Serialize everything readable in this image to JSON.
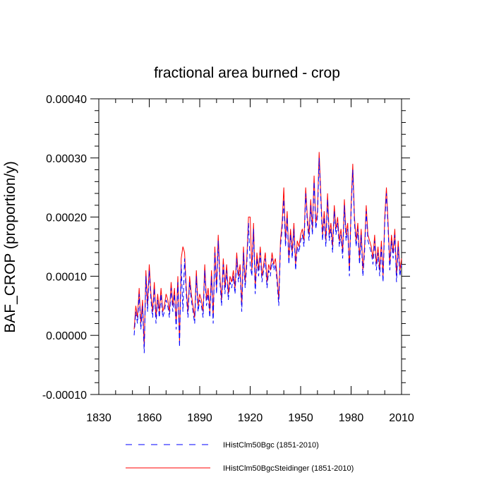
{
  "chart_data": {
    "type": "line",
    "title": "fractional area burned - crop",
    "xlabel": "",
    "ylabel": "BAF_CROP  (proportion/y)",
    "xlim": [
      1830,
      2010
    ],
    "ylim": [
      -0.0001,
      0.0004
    ],
    "x_ticks": [
      "1830",
      "1860",
      "1890",
      "1920",
      "1950",
      "1980",
      "2010"
    ],
    "y_ticks": [
      "-0.00010",
      "0.00000",
      "0.00010",
      "0.00020",
      "0.00030",
      "0.00040"
    ],
    "grid": false,
    "legend_position": "bottom",
    "x": [
      1851,
      1852,
      1853,
      1854,
      1855,
      1856,
      1857,
      1858,
      1859,
      1860,
      1861,
      1862,
      1863,
      1864,
      1865,
      1866,
      1867,
      1868,
      1869,
      1870,
      1871,
      1872,
      1873,
      1874,
      1875,
      1876,
      1877,
      1878,
      1879,
      1880,
      1881,
      1882,
      1883,
      1884,
      1885,
      1886,
      1887,
      1888,
      1889,
      1890,
      1891,
      1892,
      1893,
      1894,
      1895,
      1896,
      1897,
      1898,
      1899,
      1900,
      1901,
      1902,
      1903,
      1904,
      1905,
      1906,
      1907,
      1908,
      1909,
      1910,
      1911,
      1912,
      1913,
      1914,
      1915,
      1916,
      1917,
      1918,
      1919,
      1920,
      1921,
      1922,
      1923,
      1924,
      1925,
      1926,
      1927,
      1928,
      1929,
      1930,
      1931,
      1932,
      1933,
      1934,
      1935,
      1936,
      1937,
      1938,
      1939,
      1940,
      1941,
      1942,
      1943,
      1944,
      1945,
      1946,
      1947,
      1948,
      1949,
      1950,
      1951,
      1952,
      1953,
      1954,
      1955,
      1956,
      1957,
      1958,
      1959,
      1960,
      1961,
      1962,
      1963,
      1964,
      1965,
      1966,
      1967,
      1968,
      1969,
      1970,
      1971,
      1972,
      1973,
      1974,
      1975,
      1976,
      1977,
      1978,
      1979,
      1980,
      1981,
      1982,
      1983,
      1984,
      1985,
      1986,
      1987,
      1988,
      1989,
      1990,
      1991,
      1992,
      1993,
      1994,
      1995,
      1996,
      1997,
      1998,
      1999,
      2000,
      2001,
      2002,
      2003,
      2004,
      2005,
      2006,
      2007,
      2008,
      2009,
      2010
    ],
    "series": [
      {
        "name": "IHistClm50Bgc (1851-2010)",
        "color": "#0000ff",
        "dash": "dashed",
        "values": [
          0.0,
          4e-05,
          2e-05,
          7e-05,
          1e-05,
          5e-05,
          -3e-05,
          0.0001,
          4e-05,
          0.00011,
          6e-05,
          3e-05,
          8e-05,
          2e-05,
          6e-05,
          3e-05,
          7e-05,
          3e-05,
          4e-05,
          6e-05,
          5e-05,
          3e-05,
          8e-05,
          4e-05,
          7e-05,
          1e-05,
          9e-05,
          -2e-05,
          0.00012,
          4e-05,
          0.00013,
          7e-05,
          3e-05,
          9e-05,
          6e-05,
          4e-05,
          2e-05,
          0.0001,
          4e-05,
          6e-05,
          5e-05,
          3e-05,
          0.00011,
          5e-05,
          7e-05,
          3e-05,
          0.0001,
          2e-05,
          0.00014,
          7e-05,
          0.00016,
          9e-05,
          5e-05,
          0.00012,
          7e-05,
          0.00011,
          6e-05,
          9e-05,
          8e-05,
          0.0001,
          7e-05,
          0.00013,
          9e-05,
          0.00011,
          4e-05,
          0.00014,
          8e-05,
          0.00012,
          0.00019,
          0.00012,
          0.0001,
          0.00018,
          7e-05,
          0.00013,
          0.0001,
          0.00014,
          9e-05,
          0.00011,
          0.00013,
          8e-05,
          0.00011,
          0.0001,
          0.00013,
          0.00011,
          0.00012,
          9e-05,
          5e-05,
          0.00015,
          0.00018,
          0.00023,
          0.00015,
          0.0002,
          0.00012,
          0.00017,
          0.00013,
          0.00018,
          0.00011,
          0.00015,
          0.00014,
          0.00016,
          0.00017,
          0.00015,
          0.00024,
          0.00019,
          0.00016,
          0.00022,
          0.00017,
          0.00026,
          0.00018,
          0.0002,
          0.0003,
          0.00023,
          0.00016,
          0.0002,
          0.00015,
          0.00023,
          0.00016,
          0.00018,
          0.00014,
          0.00021,
          0.00017,
          0.00019,
          0.00015,
          0.00017,
          0.00013,
          0.00022,
          0.00016,
          0.00018,
          0.0001,
          0.00021,
          0.00028,
          0.00019,
          0.00015,
          0.00018,
          0.00012,
          0.00017,
          0.0001,
          0.00014,
          0.00021,
          0.00016,
          0.00015,
          0.00014,
          0.00012,
          0.00016,
          0.00011,
          0.00014,
          0.0001,
          0.00015,
          9e-05,
          0.00019,
          0.00024,
          0.00018,
          0.00011,
          0.00016,
          0.00013,
          0.00017,
          9e-05,
          0.00015,
          0.0001,
          0.00012
        ]
      },
      {
        "name": "IHistClm50BgcSteidinger (1851-2010)",
        "color": "#ff0000",
        "dash": "solid",
        "values": [
          1e-05,
          5e-05,
          3e-05,
          8e-05,
          2e-05,
          6e-05,
          -2e-05,
          0.00011,
          5e-05,
          0.00012,
          7e-05,
          4e-05,
          9e-05,
          3e-05,
          7e-05,
          4e-05,
          8e-05,
          4e-05,
          5e-05,
          7e-05,
          6e-05,
          4e-05,
          9e-05,
          5e-05,
          8e-05,
          2e-05,
          0.0001,
          -1e-05,
          0.00013,
          0.00015,
          0.00014,
          8e-05,
          4e-05,
          0.0001,
          7e-05,
          5e-05,
          3e-05,
          0.00011,
          5e-05,
          7e-05,
          6e-05,
          4e-05,
          0.00012,
          6e-05,
          8e-05,
          4e-05,
          0.00011,
          3e-05,
          0.00015,
          8e-05,
          0.00017,
          0.0001,
          6e-05,
          0.00013,
          8e-05,
          0.00012,
          7e-05,
          0.0001,
          9e-05,
          0.00011,
          8e-05,
          0.00014,
          0.0001,
          0.00012,
          5e-05,
          0.00015,
          9e-05,
          0.00013,
          0.0002,
          0.0002,
          0.00011,
          0.00019,
          8e-05,
          0.00014,
          0.00011,
          0.00015,
          0.0001,
          0.00012,
          0.00014,
          9e-05,
          0.00012,
          0.00011,
          0.00014,
          0.00012,
          0.00013,
          0.0001,
          6e-05,
          0.00016,
          0.00019,
          0.00025,
          0.00016,
          0.00021,
          0.00013,
          0.00018,
          0.00014,
          0.00019,
          0.00012,
          0.00016,
          0.00015,
          0.00017,
          0.00018,
          0.00016,
          0.00025,
          0.0002,
          0.00017,
          0.00023,
          0.00018,
          0.00027,
          0.00019,
          0.00021,
          0.00031,
          0.00024,
          0.00017,
          0.00021,
          0.00016,
          0.00024,
          0.00017,
          0.00019,
          0.00015,
          0.00022,
          0.00018,
          0.0002,
          0.00016,
          0.00018,
          0.00014,
          0.00023,
          0.00017,
          0.00019,
          0.00011,
          0.00022,
          0.00029,
          0.0002,
          0.00016,
          0.00019,
          0.00013,
          0.00018,
          0.00011,
          0.00015,
          0.00022,
          0.00017,
          0.00016,
          0.00015,
          0.00013,
          0.00017,
          0.00012,
          0.00015,
          0.00011,
          0.00016,
          0.0001,
          0.0002,
          0.00025,
          0.00019,
          0.00012,
          0.00017,
          0.00014,
          0.00018,
          0.0001,
          0.00016,
          0.00011,
          0.00013
        ]
      }
    ]
  }
}
